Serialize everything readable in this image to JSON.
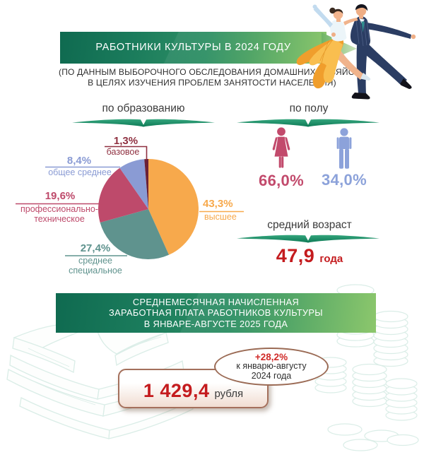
{
  "header": {
    "title": "РАБОТНИКИ КУЛЬТУРЫ В 2024 ГОДУ",
    "subtitle_line1": "(ПО ДАННЫМ ВЫБОРОЧНОГО ОБСЛЕДОВАНИЯ ДОМАШНИХ ХОЗЯЙСТВ",
    "subtitle_line2": "В ЦЕЛЯХ ИЗУЧЕНИЯ ПРОБЛЕМ ЗАНЯТОСТИ НАСЕЛЕНИЯ)"
  },
  "education": {
    "heading": "по образованию"
  },
  "chart_data": {
    "type": "pie",
    "title": "по образованию",
    "unit": "%",
    "start_angle_deg": 0,
    "direction": "clockwise",
    "slices": [
      {
        "name": "высшее",
        "value": 43.3,
        "pct": "43,3%",
        "color": "#F7A94C"
      },
      {
        "name": "среднее специальное",
        "value": 27.4,
        "pct": "27,4%",
        "color": "#5F938E"
      },
      {
        "name": "профессионально-техническое",
        "value": 19.6,
        "pct": "19,6%",
        "color": "#BE4A6B"
      },
      {
        "name": "общее среднее",
        "value": 8.4,
        "pct": "8,4%",
        "color": "#8A9BD4"
      },
      {
        "name": "базовое",
        "value": 1.3,
        "pct": "1,3%",
        "color": "#6B2136",
        "label_color": "#8F3040"
      }
    ]
  },
  "gender": {
    "heading": "по полу",
    "female": {
      "pct": "66,0%",
      "value": 66.0,
      "color": "#C24A6C"
    },
    "male": {
      "pct": "34,0%",
      "value": 34.0,
      "color": "#8CA2DA"
    }
  },
  "age": {
    "heading": "средний возраст",
    "value": "47,9",
    "unit": "года"
  },
  "salary": {
    "banner_line1": "СРЕДНЕМЕСЯЧНАЯ НАЧИСЛЕННАЯ",
    "banner_line2": "ЗАРАБОТНАЯ ПЛАТА РАБОТНИКОВ КУЛЬТУРЫ",
    "banner_line3": "В ЯНВАРЕ-АВГУСТЕ 2025 ГОДА",
    "value": "1 429,4",
    "unit": "рубля",
    "change_pct": "+28,2%",
    "change_note_line1": "к январю-августу",
    "change_note_line2": "2024 года"
  },
  "colors": {
    "banner_gradient_dark": "#0F6A50",
    "banner_gradient_light": "#8CC76C",
    "accent_green": "#1F8E68",
    "value_red": "#C41B1E",
    "badge_border_brown": "#9B6B55"
  }
}
